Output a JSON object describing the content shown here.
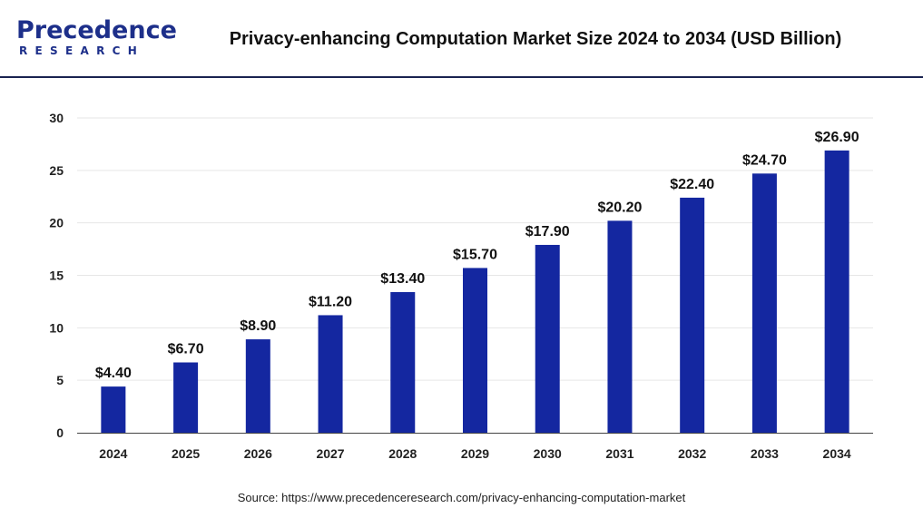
{
  "logo": {
    "main": "Precedence",
    "sub": "RESEARCH"
  },
  "header": {
    "title": "Privacy-enhancing Computation Market Size 2024 to 2034 (USD Billion)"
  },
  "source": "Source: https://www.precedenceresearch.com/privacy-enhancing-computation-market",
  "colors": {
    "bar": "#1427a0",
    "grid": "#e6e6e6",
    "axis": "#444444",
    "brand": "#1d2f8a"
  },
  "chart_data": {
    "type": "bar",
    "title": "Privacy-enhancing Computation Market Size 2024 to 2034 (USD Billion)",
    "xlabel": "",
    "ylabel": "",
    "categories": [
      "2024",
      "2025",
      "2026",
      "2027",
      "2028",
      "2029",
      "2030",
      "2031",
      "2032",
      "2033",
      "2034"
    ],
    "values": [
      4.4,
      6.7,
      8.9,
      11.2,
      13.4,
      15.7,
      17.9,
      20.2,
      22.4,
      24.7,
      26.9
    ],
    "data_labels": [
      "$4.40",
      "$6.70",
      "$8.90",
      "$11.20",
      "$13.40",
      "$15.70",
      "$17.90",
      "$20.20",
      "$22.40",
      "$24.70",
      "$26.90"
    ],
    "ylim": [
      0,
      30
    ],
    "yticks": [
      0,
      5,
      10,
      15,
      20,
      25,
      30
    ],
    "grid": true,
    "legend": "none"
  }
}
